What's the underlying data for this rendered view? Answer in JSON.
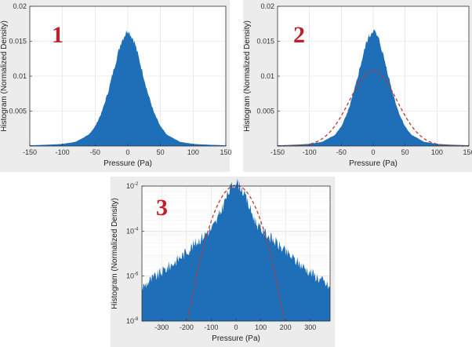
{
  "colors": {
    "histogram": "#1f6fb8",
    "gaussian_fit": "#c0392b",
    "panel_bg": "#ececec",
    "plot_bg": "#ffffff",
    "label": "#c0202a"
  },
  "chart_data": [
    {
      "type": "area",
      "panel_label": "1",
      "xlabel": "Pressure (Pa)",
      "ylabel": "Histogram (Normalized Density)",
      "xlim": [
        -150,
        150
      ],
      "ylim": [
        0,
        0.02
      ],
      "xticks": [
        -150,
        -100,
        -50,
        0,
        50,
        100,
        150
      ],
      "yticks": [
        0,
        0.005,
        0.01,
        0.015,
        0.02
      ],
      "xtick_labels": [
        "-150",
        "-100",
        "-50",
        "0",
        "50",
        "100",
        "150"
      ],
      "ytick_labels": [
        "",
        "0.005",
        "0.01",
        "0.015",
        "0.02"
      ],
      "log_y": false,
      "grid": true,
      "series": [
        {
          "kind": "histogram",
          "x": [
            -150,
            -120,
            -100,
            -80,
            -60,
            -50,
            -40,
            -30,
            -20,
            -10,
            0,
            10,
            20,
            30,
            40,
            50,
            60,
            80,
            100,
            120,
            150
          ],
          "y": [
            0.0001,
            0.0002,
            0.0003,
            0.0006,
            0.0016,
            0.0028,
            0.0048,
            0.0078,
            0.0115,
            0.015,
            0.0167,
            0.015,
            0.0115,
            0.0078,
            0.0048,
            0.0028,
            0.0016,
            0.0006,
            0.0003,
            0.0002,
            0.0001
          ]
        }
      ]
    },
    {
      "type": "area",
      "panel_label": "2",
      "xlabel": "Pressure (Pa)",
      "ylabel": "Histogram (Normalized Density)",
      "xlim": [
        -150,
        150
      ],
      "ylim": [
        0,
        0.02
      ],
      "xticks": [
        -150,
        -100,
        -50,
        0,
        50,
        100,
        150
      ],
      "yticks": [
        0,
        0.005,
        0.01,
        0.015,
        0.02
      ],
      "xtick_labels": [
        "-150",
        "-100",
        "-50",
        "0",
        "50",
        "100",
        "150"
      ],
      "ytick_labels": [
        "",
        "0.005",
        "0.01",
        "0.015",
        "0.02"
      ],
      "log_y": false,
      "grid": true,
      "series": [
        {
          "kind": "histogram",
          "x": [
            -150,
            -120,
            -100,
            -80,
            -60,
            -50,
            -40,
            -30,
            -20,
            -10,
            0,
            10,
            20,
            30,
            40,
            50,
            60,
            80,
            100,
            120,
            150
          ],
          "y": [
            0.0001,
            0.0002,
            0.0003,
            0.0006,
            0.0016,
            0.0028,
            0.0048,
            0.0078,
            0.0115,
            0.015,
            0.0167,
            0.015,
            0.0115,
            0.0078,
            0.0048,
            0.0028,
            0.0016,
            0.0006,
            0.0003,
            0.0002,
            0.0001
          ]
        },
        {
          "kind": "gaussian",
          "mean": 0,
          "std": 37,
          "peak": 0.0108
        }
      ]
    },
    {
      "type": "area",
      "panel_label": "3",
      "xlabel": "Pressure (Pa)",
      "ylabel": "Histogram (Normalized Density)",
      "xlim": [
        -380,
        380
      ],
      "ylim": [
        1e-08,
        0.01
      ],
      "xticks": [
        -300,
        -200,
        -100,
        0,
        100,
        200,
        300
      ],
      "yticks": [
        1e-08,
        1e-06,
        0.0001,
        0.01
      ],
      "xtick_labels": [
        "-300",
        "-200",
        "-100",
        "0",
        "100",
        "200",
        "300"
      ],
      "ytick_labels": [
        "10",
        "10",
        "10",
        "10"
      ],
      "ytick_exponents": [
        "-8",
        "-6",
        "-4",
        "-2"
      ],
      "log_y": true,
      "grid": true,
      "series": [
        {
          "kind": "histogram",
          "x": [
            -380,
            -350,
            -300,
            -250,
            -200,
            -150,
            -120,
            -100,
            -80,
            -60,
            -40,
            -20,
            0,
            20,
            40,
            60,
            80,
            100,
            120,
            150,
            200,
            250,
            300,
            350,
            380
          ],
          "y": [
            3e-07,
            6e-07,
            1.5e-06,
            4e-06,
            1.2e-05,
            4e-05,
            8e-05,
            0.00012,
            0.00025,
            0.0008,
            0.003,
            0.009,
            0.016,
            0.009,
            0.003,
            0.0008,
            0.00025,
            0.00012,
            8e-05,
            4e-05,
            1.2e-05,
            4e-06,
            1.5e-06,
            6e-07,
            3e-07
          ]
        },
        {
          "kind": "gaussian",
          "mean": 0,
          "std": 37,
          "peak": 0.0108
        }
      ]
    }
  ]
}
